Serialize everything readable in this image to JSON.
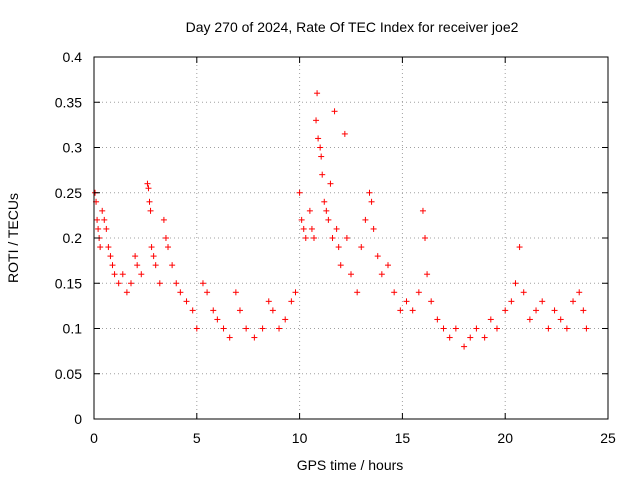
{
  "chart_data": {
    "type": "scatter",
    "title": "Day 270 of 2024, Rate Of TEC Index for receiver joe2",
    "xlabel": "GPS time / hours",
    "ylabel": "ROTI / TECUs",
    "xlim": [
      0,
      25
    ],
    "ylim": [
      0,
      0.4
    ],
    "xticks": [
      0,
      5,
      10,
      15,
      20,
      25
    ],
    "xtick_labels": [
      "0",
      "5",
      "10",
      "15",
      "20",
      "25"
    ],
    "yticks": [
      0,
      0.05,
      0.1,
      0.15,
      0.2,
      0.25,
      0.3,
      0.35,
      0.4
    ],
    "ytick_labels": [
      "0",
      "0.05",
      "0.1",
      "0.15",
      "0.2",
      "0.25",
      "0.3",
      "0.35",
      "0.4"
    ],
    "grid": true,
    "marker": "plus",
    "color": "#ff0000",
    "series": [
      {
        "name": "ROTI",
        "points": [
          [
            0.05,
            0.25
          ],
          [
            0.1,
            0.24
          ],
          [
            0.15,
            0.22
          ],
          [
            0.2,
            0.21
          ],
          [
            0.25,
            0.2
          ],
          [
            0.3,
            0.19
          ],
          [
            0.4,
            0.23
          ],
          [
            0.5,
            0.22
          ],
          [
            0.6,
            0.21
          ],
          [
            0.7,
            0.19
          ],
          [
            0.8,
            0.18
          ],
          [
            0.9,
            0.17
          ],
          [
            1.0,
            0.16
          ],
          [
            1.2,
            0.15
          ],
          [
            1.4,
            0.16
          ],
          [
            1.6,
            0.14
          ],
          [
            1.8,
            0.15
          ],
          [
            2.0,
            0.18
          ],
          [
            2.1,
            0.17
          ],
          [
            2.3,
            0.16
          ],
          [
            2.6,
            0.26
          ],
          [
            2.65,
            0.255
          ],
          [
            2.7,
            0.24
          ],
          [
            2.75,
            0.23
          ],
          [
            2.8,
            0.19
          ],
          [
            2.9,
            0.18
          ],
          [
            3.0,
            0.17
          ],
          [
            3.2,
            0.15
          ],
          [
            3.4,
            0.22
          ],
          [
            3.5,
            0.2
          ],
          [
            3.6,
            0.19
          ],
          [
            3.8,
            0.17
          ],
          [
            4.0,
            0.15
          ],
          [
            4.2,
            0.14
          ],
          [
            4.5,
            0.13
          ],
          [
            4.8,
            0.12
          ],
          [
            5.0,
            0.1
          ],
          [
            5.3,
            0.15
          ],
          [
            5.5,
            0.14
          ],
          [
            5.8,
            0.12
          ],
          [
            6.0,
            0.11
          ],
          [
            6.3,
            0.1
          ],
          [
            6.6,
            0.09
          ],
          [
            6.9,
            0.14
          ],
          [
            7.1,
            0.12
          ],
          [
            7.4,
            0.1
          ],
          [
            7.8,
            0.09
          ],
          [
            8.2,
            0.1
          ],
          [
            8.5,
            0.13
          ],
          [
            8.7,
            0.12
          ],
          [
            9.0,
            0.1
          ],
          [
            9.3,
            0.11
          ],
          [
            9.6,
            0.13
          ],
          [
            9.8,
            0.14
          ],
          [
            10.0,
            0.25
          ],
          [
            10.1,
            0.22
          ],
          [
            10.2,
            0.21
          ],
          [
            10.3,
            0.2
          ],
          [
            10.5,
            0.23
          ],
          [
            10.6,
            0.21
          ],
          [
            10.7,
            0.2
          ],
          [
            10.8,
            0.33
          ],
          [
            10.85,
            0.36
          ],
          [
            10.9,
            0.31
          ],
          [
            11.0,
            0.3
          ],
          [
            11.05,
            0.29
          ],
          [
            11.1,
            0.27
          ],
          [
            11.2,
            0.24
          ],
          [
            11.3,
            0.23
          ],
          [
            11.4,
            0.22
          ],
          [
            11.5,
            0.26
          ],
          [
            11.6,
            0.2
          ],
          [
            11.7,
            0.34
          ],
          [
            11.8,
            0.21
          ],
          [
            11.9,
            0.19
          ],
          [
            12.0,
            0.17
          ],
          [
            12.2,
            0.315
          ],
          [
            12.3,
            0.2
          ],
          [
            12.5,
            0.16
          ],
          [
            12.8,
            0.14
          ],
          [
            13.0,
            0.19
          ],
          [
            13.2,
            0.22
          ],
          [
            13.4,
            0.25
          ],
          [
            13.5,
            0.24
          ],
          [
            13.6,
            0.21
          ],
          [
            13.8,
            0.18
          ],
          [
            14.0,
            0.16
          ],
          [
            14.3,
            0.17
          ],
          [
            14.6,
            0.14
          ],
          [
            14.9,
            0.12
          ],
          [
            15.2,
            0.13
          ],
          [
            15.5,
            0.12
          ],
          [
            15.8,
            0.14
          ],
          [
            16.0,
            0.23
          ],
          [
            16.1,
            0.2
          ],
          [
            16.2,
            0.16
          ],
          [
            16.4,
            0.13
          ],
          [
            16.7,
            0.11
          ],
          [
            17.0,
            0.1
          ],
          [
            17.3,
            0.09
          ],
          [
            17.6,
            0.1
          ],
          [
            18.0,
            0.08
          ],
          [
            18.3,
            0.09
          ],
          [
            18.6,
            0.1
          ],
          [
            19.0,
            0.09
          ],
          [
            19.3,
            0.11
          ],
          [
            19.6,
            0.1
          ],
          [
            20.0,
            0.12
          ],
          [
            20.3,
            0.13
          ],
          [
            20.5,
            0.15
          ],
          [
            20.7,
            0.19
          ],
          [
            20.9,
            0.14
          ],
          [
            21.2,
            0.11
          ],
          [
            21.5,
            0.12
          ],
          [
            21.8,
            0.13
          ],
          [
            22.1,
            0.1
          ],
          [
            22.4,
            0.12
          ],
          [
            22.7,
            0.11
          ],
          [
            23.0,
            0.1
          ],
          [
            23.3,
            0.13
          ],
          [
            23.6,
            0.14
          ],
          [
            23.8,
            0.12
          ],
          [
            23.95,
            0.1
          ]
        ]
      }
    ]
  }
}
